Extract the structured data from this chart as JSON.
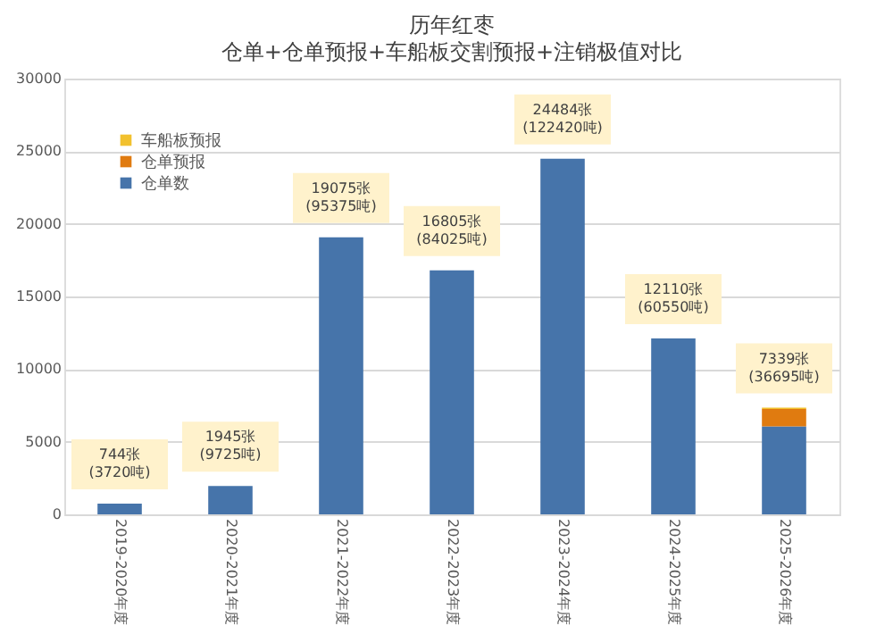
{
  "chart_data": {
    "type": "bar",
    "title": "历年红枣",
    "subtitle": "仓单+仓单预报+车船板交割预报+注销极值对比",
    "categories": [
      "2019-2020年度",
      "2020-2021年度",
      "2021-2022年度",
      "2022-2023年度",
      "2023-2024年度",
      "2024-2025年度",
      "2025-2026年度"
    ],
    "stacked": true,
    "series": [
      {
        "name": "仓单数",
        "color": "#4674aa",
        "values": [
          744,
          1945,
          19075,
          16805,
          24484,
          12110,
          6050
        ]
      },
      {
        "name": "仓单预报",
        "color": "#e07b10",
        "values": [
          null,
          null,
          null,
          null,
          null,
          null,
          1200
        ]
      },
      {
        "name": "车船板预报",
        "color": "#f2c12e",
        "values": [
          null,
          null,
          null,
          null,
          null,
          null,
          90
        ]
      }
    ],
    "totals": [
      "744张\n(3720吨)",
      "1945张\n(9725吨)",
      "19075张\n(95375吨)",
      "16805张\n(84025吨)",
      "24484张\n(122420吨)",
      "12110张\n(60550吨)",
      "7339张\n(36695吨)"
    ],
    "ylim": [
      0,
      30000
    ],
    "yticks": [
      0,
      5000,
      10000,
      15000,
      20000,
      25000,
      30000
    ],
    "grid": "y",
    "legend": "top left"
  }
}
